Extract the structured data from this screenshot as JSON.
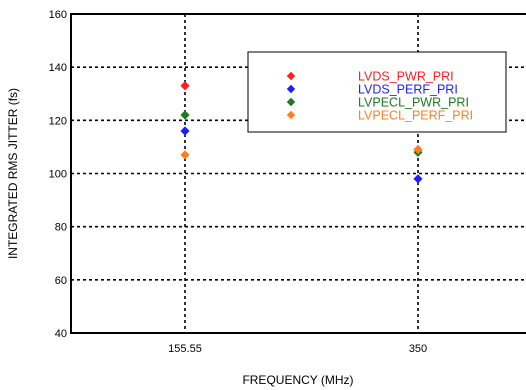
{
  "chart_data": {
    "type": "scatter",
    "xlabel": "FREQUENCY (MHz)",
    "ylabel": "INTEGRATED RMS JITTER (fs)",
    "categories": [
      "155.55",
      "350"
    ],
    "ylim": [
      40,
      160
    ],
    "yticks": [
      40,
      60,
      80,
      100,
      120,
      140,
      160
    ],
    "grid": true,
    "legend": "upper-right",
    "marker": "diamond",
    "series": [
      {
        "name": "LVDS_PWR_PRI",
        "color": "#ff1e1e",
        "values": [
          133,
          109
        ]
      },
      {
        "name": "LVDS_PERF_PRI",
        "color": "#1e1eff",
        "values": [
          116,
          98
        ]
      },
      {
        "name": "LVPECL_PWR_PRI",
        "color": "#1e7a1e",
        "values": [
          122,
          108
        ]
      },
      {
        "name": "LVPECL_PERF_PRI",
        "color": "#ff7f1e",
        "values": [
          107,
          109
        ]
      }
    ]
  }
}
